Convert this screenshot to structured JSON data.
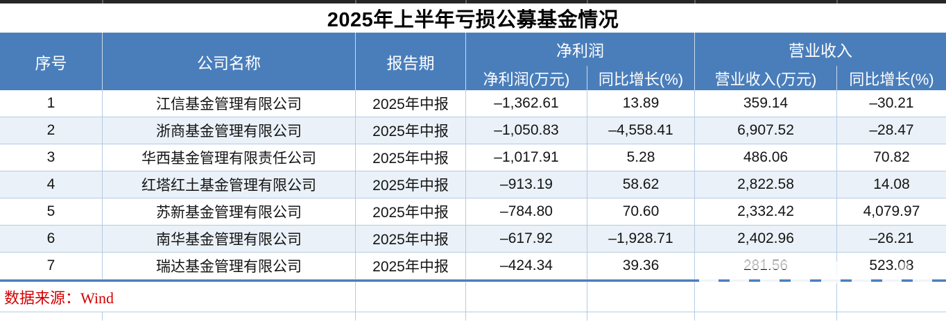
{
  "title": "2025年上半年亏损公募基金情况",
  "header": {
    "no": "序号",
    "company": "公司名称",
    "period": "报告期",
    "net_profit_group": "净利润",
    "revenue_group": "营业收入",
    "net_profit": "净利润(万元)",
    "net_profit_yoy": "同比增长(%)",
    "revenue": "营业收入(万元)",
    "revenue_yoy": "同比增长(%)"
  },
  "rows": [
    {
      "no": "1",
      "company": "江信基金管理有限公司",
      "period": "2025年中报",
      "net_profit": "–1,362.61",
      "net_profit_yoy": "13.89",
      "revenue": "359.14",
      "revenue_yoy": "–30.21"
    },
    {
      "no": "2",
      "company": "浙商基金管理有限公司",
      "period": "2025年中报",
      "net_profit": "–1,050.83",
      "net_profit_yoy": "–4,558.41",
      "revenue": "6,907.52",
      "revenue_yoy": "–28.47"
    },
    {
      "no": "3",
      "company": "华西基金管理有限责任公司",
      "period": "2025年中报",
      "net_profit": "–1,017.91",
      "net_profit_yoy": "5.28",
      "revenue": "486.06",
      "revenue_yoy": "70.82"
    },
    {
      "no": "4",
      "company": "红塔红土基金管理有限公司",
      "period": "2025年中报",
      "net_profit": "–913.19",
      "net_profit_yoy": "58.62",
      "revenue": "2,822.58",
      "revenue_yoy": "14.08"
    },
    {
      "no": "5",
      "company": "苏新基金管理有限公司",
      "period": "2025年中报",
      "net_profit": "–784.80",
      "net_profit_yoy": "70.60",
      "revenue": "2,332.42",
      "revenue_yoy": "4,079.97"
    },
    {
      "no": "6",
      "company": "南华基金管理有限公司",
      "period": "2025年中报",
      "net_profit": "–617.92",
      "net_profit_yoy": "–1,928.71",
      "revenue": "2,402.96",
      "revenue_yoy": "–26.21"
    },
    {
      "no": "7",
      "company": "瑞达基金管理有限公司",
      "period": "2025年中报",
      "net_profit": "–424.34",
      "net_profit_yoy": "39.36",
      "revenue": "281.56",
      "revenue_yoy": "523.08"
    }
  ],
  "footer": {
    "source_note": "数据来源：Wind"
  },
  "colors": {
    "header_bg": "#4a7ebb",
    "alt_row_bg": "#eaf1f8",
    "grid_line": "#b3cbe4",
    "thick_border": "#4a7ebb",
    "source_text": "#d40000",
    "title_text": "#000000"
  },
  "chart_data": {
    "type": "table",
    "title": "2025年上半年亏损公募基金情况",
    "columns": [
      "序号",
      "公司名称",
      "报告期",
      "净利润(万元)",
      "净利润同比增长(%)",
      "营业收入(万元)",
      "营业收入同比增长(%)"
    ],
    "rows": [
      [
        "1",
        "江信基金管理有限公司",
        "2025年中报",
        -1362.61,
        13.89,
        359.14,
        -30.21
      ],
      [
        "2",
        "浙商基金管理有限公司",
        "2025年中报",
        -1050.83,
        -4558.41,
        6907.52,
        -28.47
      ],
      [
        "3",
        "华西基金管理有限责任公司",
        "2025年中报",
        -1017.91,
        5.28,
        486.06,
        70.82
      ],
      [
        "4",
        "红塔红土基金管理有限公司",
        "2025年中报",
        -913.19,
        58.62,
        2822.58,
        14.08
      ],
      [
        "5",
        "苏新基金管理有限公司",
        "2025年中报",
        -784.8,
        70.6,
        2332.42,
        4079.97
      ],
      [
        "6",
        "南华基金管理有限公司",
        "2025年中报",
        -617.92,
        -1928.71,
        2402.96,
        -26.21
      ],
      [
        "7",
        "瑞达基金管理有限公司",
        "2025年中报",
        -424.34,
        39.36,
        281.56,
        523.08
      ]
    ],
    "source": "数据来源：Wind"
  }
}
